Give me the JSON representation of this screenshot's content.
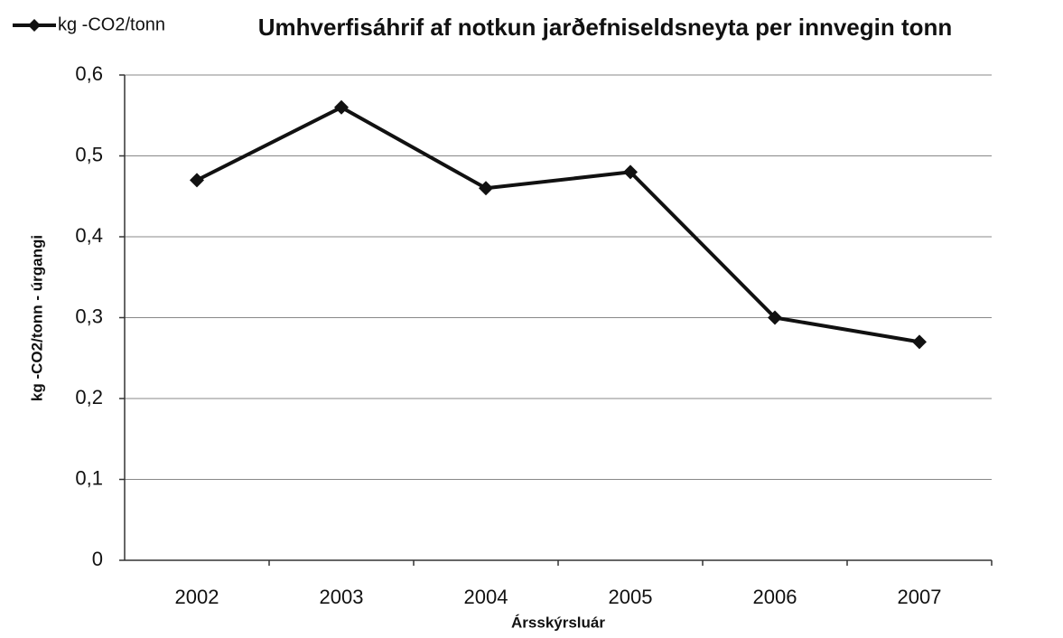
{
  "chart_data": {
    "type": "line",
    "title": "Umhverfisáhrif af notkun jarðefniseldsneyta per innvegin tonn",
    "x_label": "Ársskýrsluár",
    "y_label": "kg -CO2/tonn - úrgangi",
    "categories": [
      "2002",
      "2003",
      "2004",
      "2005",
      "2006",
      "2007"
    ],
    "series": [
      {
        "name": "kg -CO2/tonn",
        "color": "#111111",
        "values": [
          0.47,
          0.56,
          0.46,
          0.48,
          0.3,
          0.27
        ]
      }
    ],
    "ylim": [
      0,
      0.6
    ],
    "yticks": [
      0,
      {
        "value": 0.1,
        "label": "0,1"
      },
      {
        "value": 0.2,
        "label": "0,2"
      },
      {
        "value": 0.3,
        "label": "0,3"
      },
      {
        "value": 0.4,
        "label": "0,4"
      },
      {
        "value": 0.5,
        "label": "0,5"
      },
      {
        "value": 0.6,
        "label": "0,6"
      }
    ],
    "grid": true,
    "legend": "top-left"
  }
}
